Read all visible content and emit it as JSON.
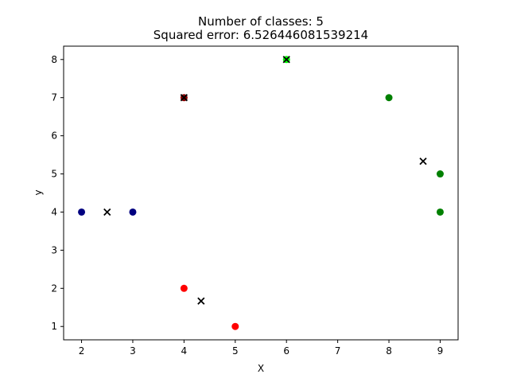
{
  "chart_data": {
    "type": "scatter",
    "title_line1": "Number of classes: 5",
    "title_line2": "Squared error: 6.526446081539214",
    "xlabel": "X",
    "ylabel": "y",
    "xlim": [
      1.65,
      9.35
    ],
    "ylim": [
      0.65,
      8.35
    ],
    "x_ticks": [
      2,
      3,
      4,
      5,
      6,
      7,
      8,
      9
    ],
    "y_ticks": [
      1,
      2,
      3,
      4,
      5,
      6,
      7,
      8
    ],
    "points": [
      {
        "x": 2,
        "y": 4,
        "color": "#000080"
      },
      {
        "x": 3,
        "y": 4,
        "color": "#000080"
      },
      {
        "x": 4,
        "y": 2,
        "color": "#ff0000"
      },
      {
        "x": 5,
        "y": 1,
        "color": "#ff0000"
      },
      {
        "x": 4,
        "y": 7,
        "color": "#8b0000"
      },
      {
        "x": 6,
        "y": 8,
        "color": "#00ff00"
      },
      {
        "x": 8,
        "y": 7,
        "color": "#008000"
      },
      {
        "x": 9,
        "y": 5,
        "color": "#008000"
      },
      {
        "x": 9,
        "y": 4,
        "color": "#008000"
      }
    ],
    "centroids": [
      {
        "x": 2.5,
        "y": 4
      },
      {
        "x": 4.333,
        "y": 1.667
      },
      {
        "x": 4,
        "y": 7
      },
      {
        "x": 6,
        "y": 8
      },
      {
        "x": 8.667,
        "y": 5.333
      }
    ],
    "centroid_color": "#000000"
  }
}
